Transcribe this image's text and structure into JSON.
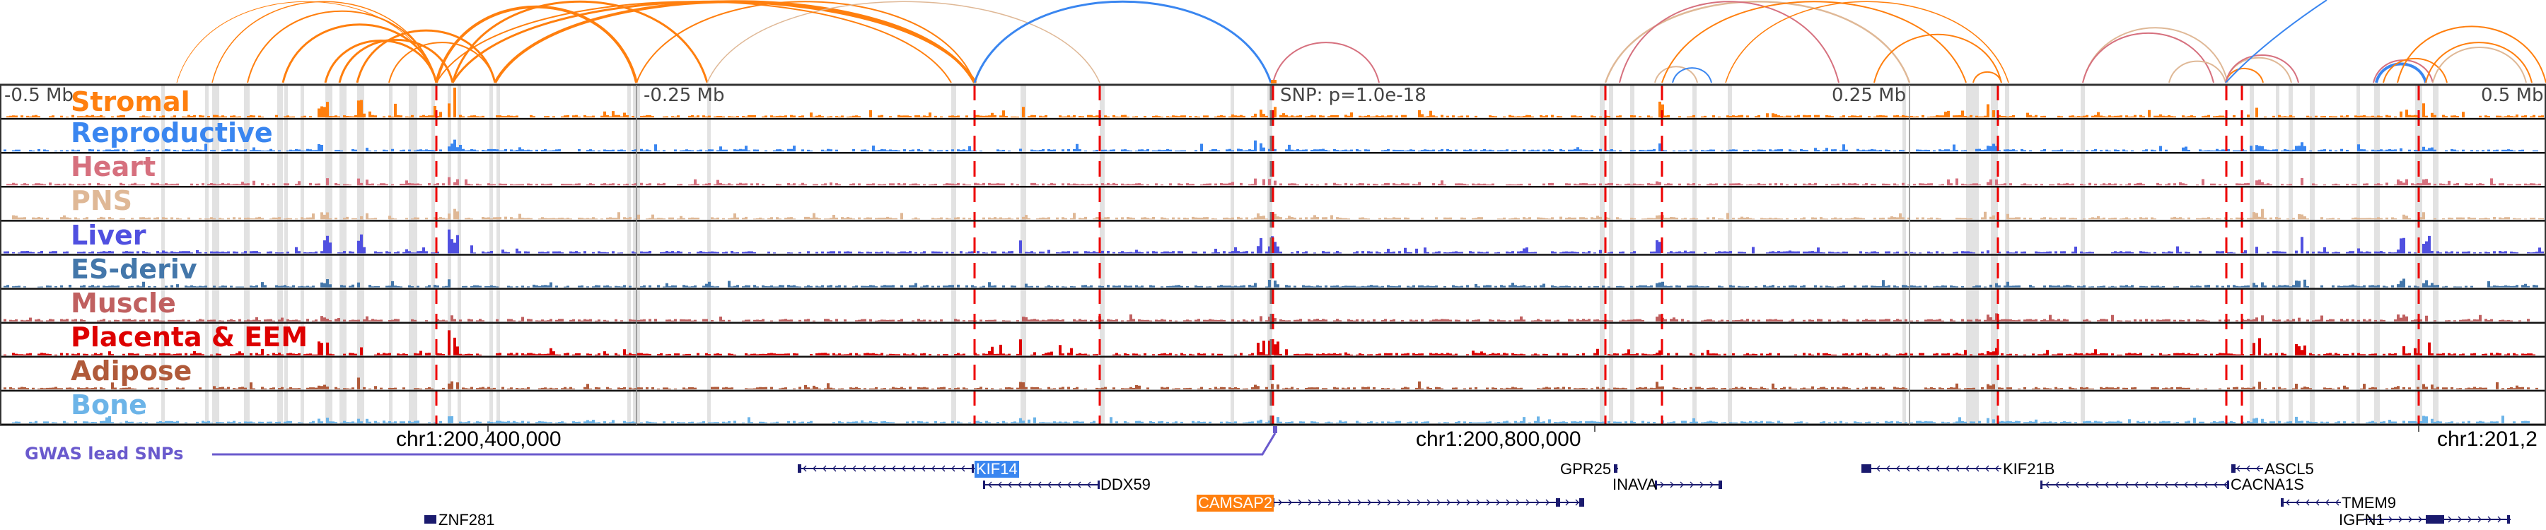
{
  "colors": {
    "Stromal": "#ff7f0e",
    "Reproductive": "#3a86f0",
    "Heart": "#d6707e",
    "PNS": "#dfb896",
    "Liver": "#5050e0",
    "ES-deriv": "#4477aa",
    "Muscle": "#c06060",
    "Placenta & EEM": "#dd0000",
    "Adipose": "#b05a3a",
    "Bone": "#6cb4e8",
    "gwas": "#6a5acd",
    "gene": "#1a1a6e",
    "kif14_bg": "#3a86f0",
    "camsap2_bg": "#ff7f0e"
  },
  "tracks": [
    {
      "label": "Stromal",
      "color": "#ff7f0e"
    },
    {
      "label": "Reproductive",
      "color": "#3a86f0"
    },
    {
      "label": "Heart",
      "color": "#d6707e"
    },
    {
      "label": "PNS",
      "color": "#dfb896"
    },
    {
      "label": "Liver",
      "color": "#5050e0"
    },
    {
      "label": "ES-deriv",
      "color": "#4477aa"
    },
    {
      "label": "Muscle",
      "color": "#c06060"
    },
    {
      "label": "Placenta & EEM",
      "color": "#dd0000"
    },
    {
      "label": "Adipose",
      "color": "#b05a3a"
    },
    {
      "label": "Bone",
      "color": "#6cb4e8"
    }
  ],
  "distance_labels": {
    "m05": "-0.5 Mb",
    "m025": "-0.25 Mb",
    "snp": "SNP: p=1.0e-18",
    "p025": "0.25 Mb",
    "p05": "0.5 Mb"
  },
  "coordinates": {
    "c1": "chr1:200,400,000",
    "c2": "chr1:200,800,000",
    "c3": "chr1:201,2"
  },
  "gwas_label": "GWAS lead SNPs",
  "genes": {
    "KIF14": "KIF14",
    "DDX59": "DDX59",
    "CAMSAP2": "CAMSAP2",
    "ZNF281": "ZNF281",
    "GPR25": "GPR25",
    "INAVA": "INAVA",
    "KIF21B": "KIF21B",
    "ASCL5": "ASCL5",
    "CACNA1S": "CACNA1S",
    "TMEM9": "TMEM9",
    "IGFN1": "IGFN1"
  }
}
